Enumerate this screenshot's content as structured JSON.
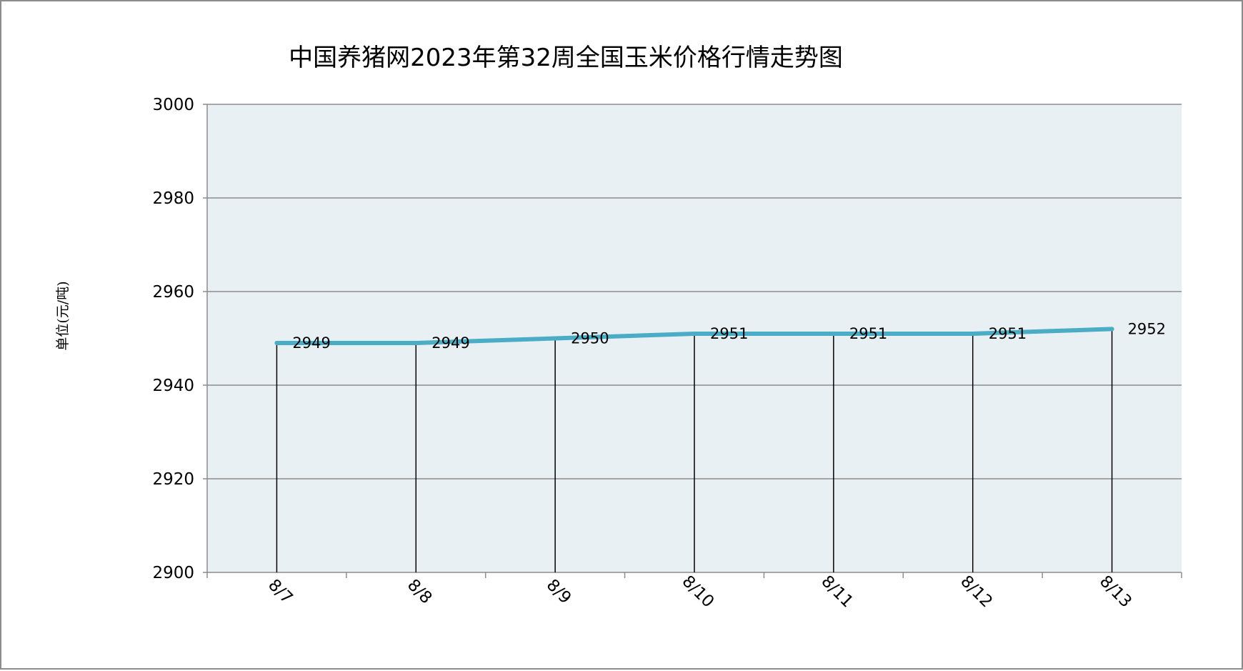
{
  "chart_data": {
    "type": "line",
    "title": "中国养猪网2023年第32周全国玉米价格行情走势图",
    "ylabel": "单位(元/吨)",
    "xlabel": "",
    "categories": [
      "8/7",
      "8/8",
      "8/9",
      "8/10",
      "8/11",
      "8/12",
      "8/13"
    ],
    "series": [
      {
        "values": [
          2949,
          2949,
          2950,
          2951,
          2951,
          2951,
          2952
        ]
      }
    ],
    "data_labels": [
      "2949",
      "2949",
      "2950",
      "2951",
      "2951",
      "2951",
      "2952"
    ],
    "ylim": [
      2900,
      3000
    ],
    "yticks": [
      2900,
      2920,
      2940,
      2960,
      2980,
      3000
    ],
    "ytick_labels": [
      "2900",
      "2920",
      "2940",
      "2960",
      "2980",
      "3000"
    ],
    "grid": true,
    "drop_lines": true,
    "legend": "none",
    "colors": {
      "line": "#4BACC6",
      "plot_background": "#E9F0F4",
      "gridline": "#8C8C8C",
      "drop_line": "#000000",
      "border": "#8C8C8C"
    }
  }
}
